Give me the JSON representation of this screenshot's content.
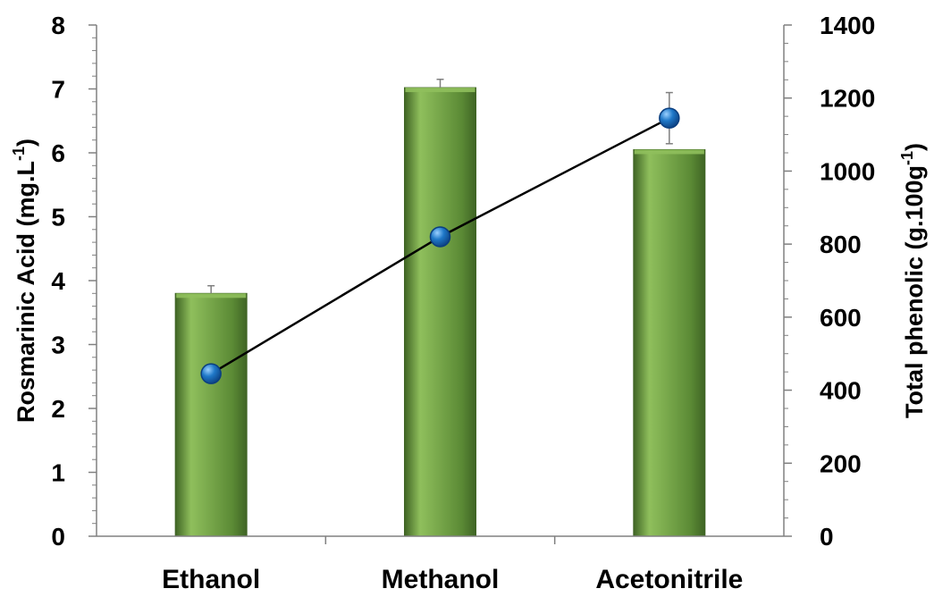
{
  "colors": {
    "bar_fill": "#5b8a35",
    "bar_light": "#8fbf5c",
    "bar_dark": "#3f6424",
    "marker_fill": "#1f78c8",
    "marker_light": "#9ad0ff",
    "marker_dark": "#0b3f80",
    "line": "#000000",
    "error_bar": "#7f7f7f",
    "axis": "#808080"
  },
  "chart_data": {
    "type": "bar",
    "categories": [
      "Ethanol",
      "Methanol",
      "Acetonitrile"
    ],
    "series": [
      {
        "type": "bar",
        "axis": "left",
        "values": [
          3.8,
          7.02,
          6.05
        ],
        "errors": [
          0.12,
          0.13,
          0
        ]
      },
      {
        "type": "line",
        "axis": "right",
        "values": [
          445,
          820,
          1145
        ],
        "errors": [
          0,
          0,
          70
        ]
      }
    ],
    "ylabel": {
      "main": "Rosmarinic Acid (mg.L",
      "sup": "-1",
      "end": ")"
    },
    "y2label": {
      "main": "Total phenolic (g.100g",
      "sup": "-1",
      "end": ")"
    },
    "ylim": [
      0,
      8
    ],
    "y2lim": [
      0,
      1400
    ],
    "y_ticks": [
      0,
      1,
      2,
      3,
      4,
      5,
      6,
      7,
      8
    ],
    "y2_ticks": [
      0,
      200,
      400,
      600,
      800,
      1000,
      1200,
      1400
    ],
    "grid": false,
    "legend": "none"
  }
}
